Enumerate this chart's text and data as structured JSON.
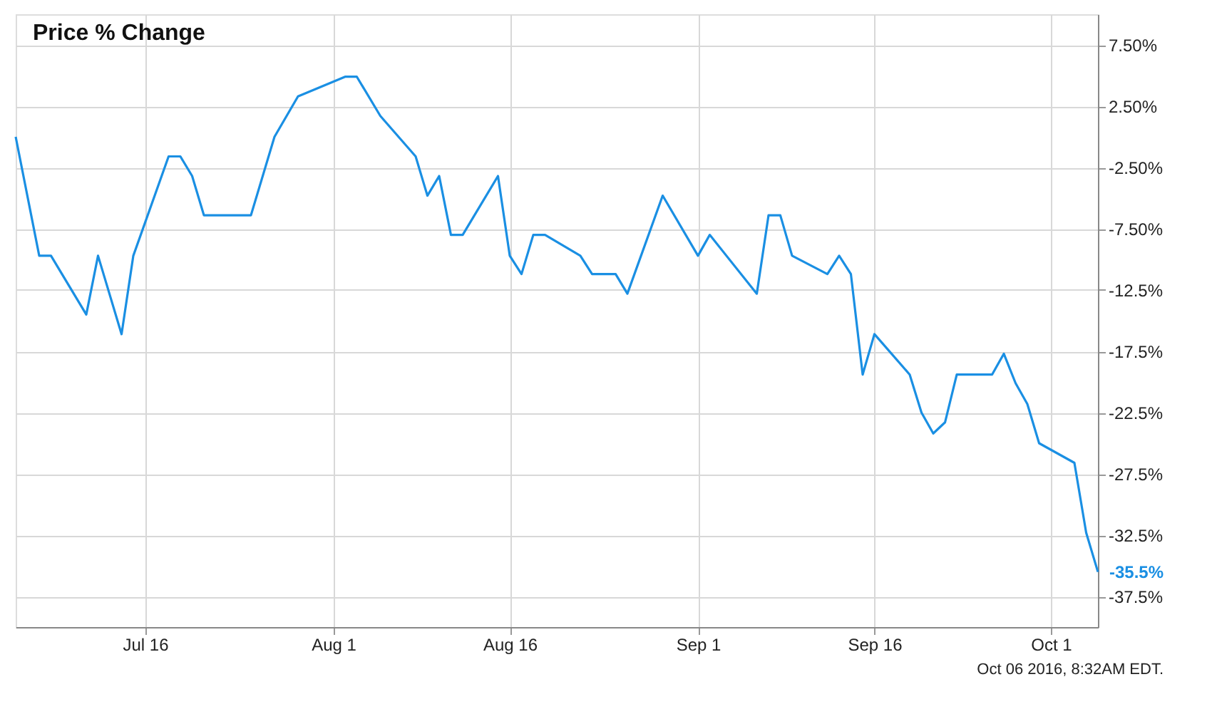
{
  "chart_data": {
    "type": "line",
    "title": "Price % Change",
    "x": [
      "2016-07-05",
      "2016-07-07",
      "2016-07-08",
      "2016-07-11",
      "2016-07-12",
      "2016-07-14",
      "2016-07-15",
      "2016-07-18",
      "2016-07-19",
      "2016-07-20",
      "2016-07-21",
      "2016-07-22",
      "2016-07-25",
      "2016-07-27",
      "2016-07-29",
      "2016-08-02",
      "2016-08-03",
      "2016-08-05",
      "2016-08-08",
      "2016-08-09",
      "2016-08-10",
      "2016-08-11",
      "2016-08-12",
      "2016-08-15",
      "2016-08-16",
      "2016-08-17",
      "2016-08-18",
      "2016-08-19",
      "2016-08-22",
      "2016-08-23",
      "2016-08-24",
      "2016-08-25",
      "2016-08-26",
      "2016-08-29",
      "2016-09-01",
      "2016-09-02",
      "2016-09-06",
      "2016-09-07",
      "2016-09-08",
      "2016-09-09",
      "2016-09-12",
      "2016-09-13",
      "2016-09-14",
      "2016-09-15",
      "2016-09-16",
      "2016-09-19",
      "2016-09-20",
      "2016-09-21",
      "2016-09-22",
      "2016-09-23",
      "2016-09-26",
      "2016-09-27",
      "2016-09-28",
      "2016-09-29",
      "2016-09-30",
      "2016-10-03",
      "2016-10-04",
      "2016-10-05"
    ],
    "series": [
      {
        "color": "#1a8fe3",
        "values": [
          0.0,
          -9.7,
          -9.7,
          -14.5,
          -9.7,
          -16.1,
          -9.7,
          -1.6,
          -1.6,
          -3.2,
          -6.4,
          -6.4,
          -6.4,
          0.0,
          3.3,
          4.9,
          4.9,
          1.7,
          -1.6,
          -4.8,
          -3.2,
          -8.0,
          -8.0,
          -3.2,
          -9.7,
          -11.2,
          -8.0,
          -8.0,
          -9.7,
          -11.2,
          -11.2,
          -11.2,
          -12.8,
          -4.8,
          -9.7,
          -8.0,
          -12.8,
          -6.4,
          -6.4,
          -9.7,
          -11.2,
          -9.7,
          -11.2,
          -19.4,
          -16.1,
          -19.4,
          -22.5,
          -24.2,
          -23.3,
          -19.4,
          -19.4,
          -17.7,
          -20.1,
          -21.8,
          -25.0,
          -26.6,
          -32.3,
          -35.5
        ],
        "value_labels": [
          null,
          null,
          null,
          null,
          null,
          null,
          null,
          null,
          null,
          null,
          null,
          null,
          null,
          null,
          null,
          null,
          null,
          null,
          null,
          null,
          null,
          null,
          null,
          null,
          null,
          null,
          null,
          null,
          null,
          null,
          null,
          null,
          null,
          null,
          null,
          null,
          null,
          null,
          null,
          null,
          null,
          null,
          null,
          null,
          null,
          null,
          null,
          null,
          null,
          null,
          null,
          null,
          null,
          null,
          null,
          null,
          null,
          "-35.5%"
        ]
      }
    ],
    "xlim": [
      "2016-07-05",
      "2016-10-05"
    ],
    "xticks": [
      {
        "value": "2016-07-16",
        "label": "Jul 16"
      },
      {
        "value": "2016-08-01",
        "label": "Aug 1"
      },
      {
        "value": "2016-08-16",
        "label": "Aug 16"
      },
      {
        "value": "2016-09-01",
        "label": "Sep 1"
      },
      {
        "value": "2016-09-16",
        "label": "Sep 16"
      },
      {
        "value": "2016-10-01",
        "label": "Oct 1"
      }
    ],
    "ylim": [
      -40,
      10
    ],
    "yticks": [
      {
        "value": 7.5,
        "label": "7.50%"
      },
      {
        "value": 2.5,
        "label": "2.50%"
      },
      {
        "value": -2.5,
        "label": "-2.50%"
      },
      {
        "value": -7.5,
        "label": "-7.50%"
      },
      {
        "value": -12.5,
        "label": "-12.5%"
      },
      {
        "value": -17.5,
        "label": "-17.5%"
      },
      {
        "value": -22.5,
        "label": "-22.5%"
      },
      {
        "value": -27.5,
        "label": "-27.5%"
      },
      {
        "value": -32.5,
        "label": "-32.5%"
      },
      {
        "value": -37.5,
        "label": "-37.5%"
      }
    ],
    "grid": true,
    "marker": "none",
    "line_style": "solid",
    "annotations": [
      "Oct 06 2016, 8:32AM EDT."
    ]
  }
}
